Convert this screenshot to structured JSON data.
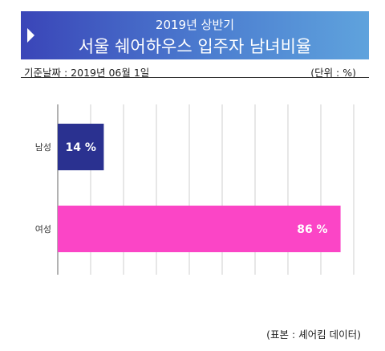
{
  "header": {
    "subtitle": "2019년 상반기",
    "title": "서울 쉐어하우스 입주자 남녀비율"
  },
  "meta": {
    "date_label": "기준날짜 : 2019년 06월 1일",
    "unit_label": "(단위 : %)"
  },
  "source": "(표본 : 셰어킴 데이터)",
  "colors": {
    "male": "#2a3190",
    "female": "#fb45c6",
    "grid": "#cfcfcf"
  },
  "chart_data": {
    "type": "bar",
    "orientation": "horizontal",
    "categories": [
      "남성",
      "여성"
    ],
    "values": [
      14,
      86
    ],
    "value_labels": [
      "14 %",
      "86 %"
    ],
    "unit": "%",
    "xlim": [
      0,
      100
    ],
    "grid": true
  }
}
